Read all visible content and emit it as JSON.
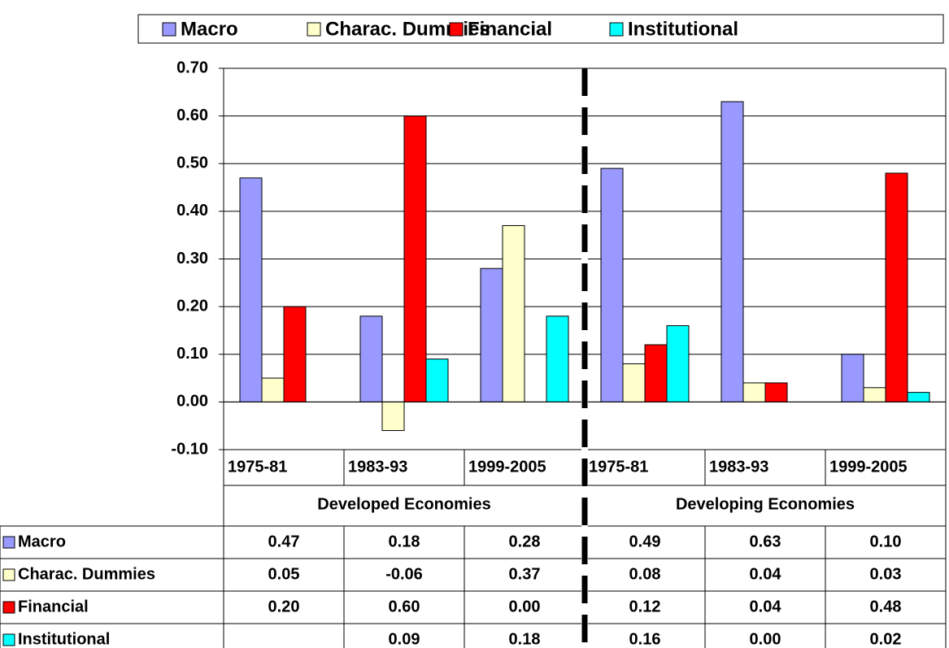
{
  "chart_data": {
    "type": "bar",
    "categories": [
      "1975-81",
      "1983-93",
      "1999-2005",
      "1975-81",
      "1983-93",
      "1999-2005"
    ],
    "group_labels": [
      "Developed Economies",
      "Developing Economies"
    ],
    "series": [
      {
        "name": "Macro",
        "color": "#9999ff",
        "values": [
          0.47,
          0.18,
          0.28,
          0.49,
          0.63,
          0.1
        ],
        "value_labels": [
          "0.47",
          "0.18",
          "0.28",
          "0.49",
          "0.63",
          "0.10"
        ]
      },
      {
        "name": "Charac. Dummies",
        "color": "#ffffcc",
        "values": [
          0.05,
          -0.06,
          0.37,
          0.08,
          0.04,
          0.03
        ],
        "value_labels": [
          "0.05",
          "-0.06",
          "0.37",
          "0.08",
          "0.04",
          "0.03"
        ]
      },
      {
        "name": "Financial",
        "color": "#ff0000",
        "values": [
          0.2,
          0.6,
          0.0,
          0.12,
          0.04,
          0.48
        ],
        "value_labels": [
          "0.20",
          "0.60",
          "0.00",
          "0.12",
          "0.04",
          "0.48"
        ]
      },
      {
        "name": "Institutional",
        "color": "#00ffff",
        "values": [
          null,
          0.09,
          0.18,
          0.16,
          0.0,
          0.02
        ],
        "value_labels": [
          null,
          "0.09",
          "0.18",
          "0.16",
          "0.00",
          "0.02"
        ]
      }
    ],
    "ylim": [
      -0.1,
      0.7
    ],
    "yticks": [
      {
        "value": -0.1,
        "label": "-0.10"
      },
      {
        "value": 0,
        "label": "0.00"
      },
      {
        "value": 0.1,
        "label": "0.10"
      },
      {
        "value": 0.2,
        "label": "0.20"
      },
      {
        "value": 0.3,
        "label": "0.30"
      },
      {
        "value": 0.4,
        "label": "0.40"
      },
      {
        "value": 0.5,
        "label": "0.50"
      },
      {
        "value": 0.6,
        "label": "0.60"
      },
      {
        "value": 0.7,
        "label": "0.70"
      }
    ],
    "grid": true,
    "legend": "top"
  }
}
